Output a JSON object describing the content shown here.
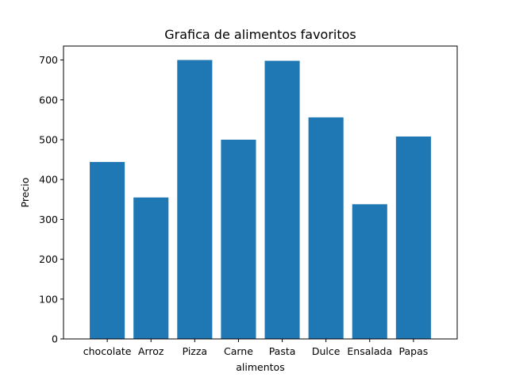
{
  "chart_data": {
    "type": "bar",
    "title": "Grafica de alimentos favoritos",
    "xlabel": "alimentos",
    "ylabel": "Precio",
    "categories": [
      "chocolate",
      "Arroz",
      "Pizza",
      "Carne",
      "Pasta",
      "Dulce",
      "Ensalada",
      "Papas"
    ],
    "values": [
      444,
      355,
      700,
      500,
      698,
      556,
      338,
      508
    ],
    "ylim": [
      0,
      735
    ],
    "yticks": [
      0,
      100,
      200,
      300,
      400,
      500,
      600,
      700
    ],
    "grid": false,
    "bar_color": "#1f77b4"
  }
}
